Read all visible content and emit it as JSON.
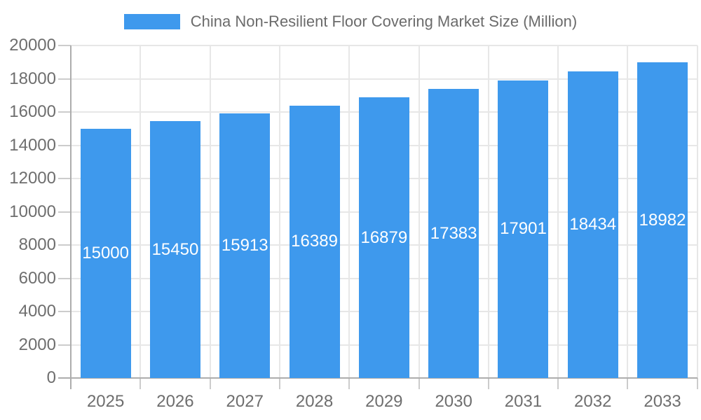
{
  "legend": {
    "label": "China Non-Resilient Floor Covering Market Size (Million)"
  },
  "chart_data": {
    "type": "bar",
    "title": "China Non-Resilient Floor Covering Market Size (Million)",
    "categories": [
      "2025",
      "2026",
      "2027",
      "2028",
      "2029",
      "2030",
      "2031",
      "2032",
      "2033"
    ],
    "values": [
      15000,
      15450,
      15913,
      16389,
      16879,
      17383,
      17901,
      18434,
      18982
    ],
    "xlabel": "",
    "ylabel": "",
    "ylim": [
      0,
      20000
    ],
    "ytick_step": 2000,
    "ytick_labels": [
      "0",
      "2000",
      "4000",
      "6000",
      "8000",
      "10000",
      "12000",
      "14000",
      "16000",
      "18000",
      "20000"
    ],
    "grid": true,
    "legend_position": "top",
    "bar_color": "#3e99ed",
    "bar_label_color": "#ffffff",
    "axis_text_color": "#6e6e6e",
    "grid_color": "#e7e7e7",
    "axis_line_color": "#adadad",
    "tick_color": "#cccccc"
  }
}
